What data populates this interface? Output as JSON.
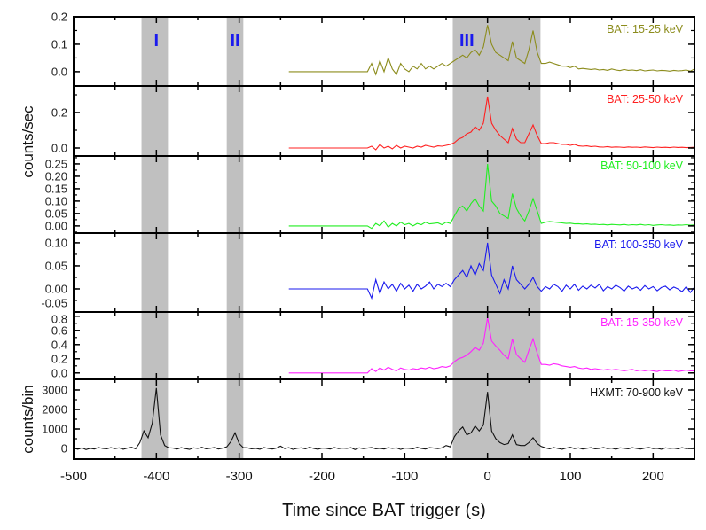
{
  "chart_data": {
    "type": "line",
    "xlabel": "Time since BAT trigger (s)",
    "xlim": [
      -500,
      250
    ],
    "xticks": [
      -500,
      -400,
      -300,
      -200,
      -100,
      0,
      100,
      200
    ],
    "ylabel_top": "counts/sec",
    "ylabel_bottom": "counts/bin",
    "grid": false,
    "shaded_regions": [
      {
        "label": "I",
        "x": [
          -418,
          -386
        ]
      },
      {
        "label": "II",
        "x": [
          -315,
          -295
        ]
      },
      {
        "label": "III",
        "x": [
          -42,
          64
        ]
      }
    ],
    "bat_x": [
      -240,
      -145,
      -140,
      -135,
      -130,
      -125,
      -120,
      -115,
      -110,
      -105,
      -100,
      -95,
      -90,
      -85,
      -80,
      -75,
      -70,
      -65,
      -60,
      -55,
      -50,
      -45,
      -40,
      -35,
      -30,
      -25,
      -20,
      -15,
      -10,
      -5,
      0,
      5,
      10,
      15,
      20,
      25,
      30,
      35,
      40,
      45,
      50,
      55,
      60,
      65,
      70,
      75,
      80,
      85,
      90,
      95,
      100,
      105,
      110,
      115,
      120,
      125,
      130,
      135,
      140,
      145,
      150,
      155,
      160,
      165,
      170,
      175,
      180,
      185,
      190,
      195,
      200,
      205,
      210,
      215,
      220,
      225,
      230,
      235,
      240,
      245,
      250
    ],
    "hxmt_x_range": [
      -500,
      250
    ],
    "panels": [
      {
        "name": "BAT: 15-25 keV",
        "color": "#8c8c1c",
        "ylim": [
          -0.052,
          0.2
        ],
        "yticks": [
          "0.0",
          "0.1",
          "0.2"
        ],
        "ytick_values": [
          0,
          0.1,
          0.2
        ],
        "minor_step": 0.05,
        "values": [
          0,
          0,
          0.03,
          -0.01,
          0.04,
          0.0,
          0.05,
          0.01,
          -0.01,
          0.03,
          0.01,
          0.0,
          0.02,
          0.01,
          0.03,
          0.01,
          0.02,
          0.01,
          0.02,
          0.03,
          0.02,
          0.03,
          0.04,
          0.05,
          0.06,
          0.05,
          0.07,
          0.08,
          0.06,
          0.09,
          0.17,
          0.1,
          0.07,
          0.06,
          0.05,
          0.04,
          0.11,
          0.05,
          0.04,
          0.03,
          0.08,
          0.15,
          0.07,
          0.03,
          0.03,
          0.035,
          0.03,
          0.025,
          0.02,
          0.02,
          0.015,
          0.02,
          0.01,
          0.012,
          0.01,
          0.008,
          0.01,
          0.006,
          0.008,
          0.005,
          0.01,
          0.006,
          0.004,
          0.008,
          0.005,
          0.006,
          0.004,
          0.007,
          0.003,
          0.005,
          0.006,
          0.003,
          0.005,
          0.004,
          0.002,
          0.005,
          0.003,
          0.004,
          0.006,
          0.002,
          0.01
        ]
      },
      {
        "name": "BAT: 25-50 keV",
        "color": "#ff2020",
        "ylim": [
          -0.045,
          0.35
        ],
        "yticks": [
          "0.0",
          "0.2"
        ],
        "ytick_values": [
          0,
          0.2
        ],
        "minor_step": 0.1,
        "values": [
          0,
          0,
          0.01,
          -0.01,
          0.02,
          0.0,
          0.01,
          -0.005,
          0.015,
          0.0,
          0.01,
          0.005,
          0.0,
          0.01,
          0.005,
          0.015,
          0.01,
          0.005,
          0.012,
          0.01,
          0.015,
          0.02,
          0.03,
          0.05,
          0.06,
          0.08,
          0.09,
          0.12,
          0.1,
          0.14,
          0.29,
          0.14,
          0.1,
          0.07,
          0.05,
          0.03,
          0.11,
          0.05,
          0.03,
          0.03,
          0.08,
          0.13,
          0.07,
          0.025,
          0.025,
          0.03,
          0.03,
          0.025,
          0.02,
          0.02,
          0.015,
          0.02,
          0.012,
          0.01,
          0.012,
          0.008,
          0.01,
          0.006,
          0.005,
          0.008,
          0.004,
          0.006,
          0.005,
          0.003,
          0.006,
          0.004,
          0.005,
          0.003,
          0.006,
          0.004,
          0.002,
          0.005,
          0.003,
          0.004,
          0.002,
          0.005,
          0.003,
          0.004,
          0.002,
          0.003,
          0.004
        ]
      },
      {
        "name": "BAT: 50-100 keV",
        "color": "#22ee22",
        "ylim": [
          -0.029,
          0.282
        ],
        "yticks": [
          "0.00",
          "0.05",
          "0.10",
          "0.15",
          "0.20",
          "0.25"
        ],
        "ytick_values": [
          0,
          0.05,
          0.1,
          0.15,
          0.2,
          0.25
        ],
        "minor_step": 0.025,
        "values": [
          0,
          0,
          -0.01,
          0.01,
          0.0,
          0.02,
          -0.005,
          0.01,
          0.0,
          0.015,
          0.005,
          0.01,
          0.0,
          0.01,
          0.005,
          0.015,
          0.008,
          0.01,
          0.012,
          0.005,
          0.015,
          0.01,
          0.04,
          0.07,
          0.08,
          0.06,
          0.09,
          0.11,
          0.08,
          0.06,
          0.25,
          0.1,
          0.08,
          0.05,
          0.04,
          0.03,
          0.13,
          0.07,
          0.04,
          0.02,
          0.06,
          0.11,
          0.06,
          0.01,
          0.015,
          0.018,
          0.016,
          0.014,
          0.012,
          0.01,
          0.011,
          0.008,
          0.009,
          0.007,
          0.008,
          0.006,
          0.007,
          0.005,
          0.006,
          0.004,
          0.006,
          0.005,
          0.004,
          0.006,
          0.003,
          0.005,
          0.004,
          0.006,
          0.003,
          0.005,
          0.002,
          0.004,
          0.005,
          0.003,
          0.004,
          0.002,
          0.004,
          0.003,
          0.005,
          0.003,
          0.004
        ]
      },
      {
        "name": "BAT: 100-350 keV",
        "color": "#1a1aee",
        "ylim": [
          -0.05,
          0.121
        ],
        "yticks": [
          "-0.05",
          "0.00",
          "0.05",
          "0.10"
        ],
        "ytick_values": [
          -0.05,
          0,
          0.05,
          0.1
        ],
        "minor_step": 0.025,
        "values": [
          0,
          0,
          -0.02,
          0.02,
          -0.01,
          0.015,
          0.0,
          0.01,
          -0.005,
          0.012,
          0.0,
          0.008,
          -0.005,
          0.01,
          0.0,
          0.006,
          0.015,
          0.0,
          0.01,
          0.005,
          0.012,
          0.005,
          0.02,
          0.03,
          0.04,
          0.025,
          0.05,
          0.03,
          0.055,
          0.04,
          0.1,
          0.03,
          0.01,
          -0.01,
          0.02,
          0.0,
          0.05,
          0.02,
          0.01,
          0.0,
          0.01,
          0.025,
          0.005,
          -0.005,
          0.005,
          0.0,
          0.01,
          0.005,
          -0.005,
          0.008,
          0.0,
          0.01,
          -0.003,
          0.006,
          0.0,
          0.008,
          0.002,
          0.01,
          -0.004,
          0.005,
          0.0,
          0.008,
          0.003,
          -0.005,
          0.006,
          0.0,
          0.004,
          -0.003,
          0.007,
          0.0,
          0.005,
          -0.004,
          0.003,
          0.006,
          -0.002,
          0.004,
          0.0,
          -0.006,
          0.005,
          -0.008,
          0.004
        ]
      },
      {
        "name": "BAT: 15-350 keV",
        "color": "#ff22ff",
        "ylim": [
          -0.09,
          0.86
        ],
        "yticks": [
          "0.0",
          "0.2",
          "0.4",
          "0.6",
          "0.8"
        ],
        "ytick_values": [
          0,
          0.2,
          0.4,
          0.6,
          0.8
        ],
        "minor_step": 0.1,
        "values": [
          0,
          0,
          0.06,
          0.02,
          0.07,
          0.04,
          0.08,
          0.05,
          0.03,
          0.07,
          0.05,
          0.04,
          0.06,
          0.05,
          0.07,
          0.06,
          0.08,
          0.06,
          0.07,
          0.09,
          0.08,
          0.1,
          0.16,
          0.2,
          0.22,
          0.25,
          0.3,
          0.36,
          0.32,
          0.42,
          0.78,
          0.45,
          0.38,
          0.32,
          0.25,
          0.2,
          0.48,
          0.26,
          0.2,
          0.15,
          0.32,
          0.48,
          0.28,
          0.12,
          0.12,
          0.11,
          0.13,
          0.12,
          0.1,
          0.09,
          0.08,
          0.09,
          0.07,
          0.06,
          0.07,
          0.05,
          0.06,
          0.05,
          0.04,
          0.05,
          0.04,
          0.05,
          0.04,
          0.03,
          0.04,
          0.05,
          0.03,
          0.04,
          0.03,
          0.04,
          0.03,
          0.02,
          0.04,
          0.03,
          0.03,
          0.04,
          0.02,
          0.03,
          0.04,
          0.03,
          0.03
        ]
      },
      {
        "name": "HXMT: 70-900 keV",
        "color": "#111111",
        "ylim": [
          -545,
          3545
        ],
        "yticks": [
          "0",
          "1000",
          "2000",
          "3000"
        ],
        "ytick_values": [
          0,
          1000,
          2000,
          3000
        ],
        "minor_step": 500,
        "values": [
          20,
          -40,
          30,
          -60,
          10,
          -30,
          50,
          0,
          -20,
          40,
          -10,
          30,
          -40,
          20,
          60,
          -20,
          300,
          900,
          550,
          1300,
          3100,
          700,
          150,
          30,
          20,
          -30,
          40,
          -10,
          -50,
          30,
          0,
          60,
          -20,
          10,
          50,
          -30,
          20,
          80,
          350,
          800,
          250,
          40,
          30,
          -20,
          10,
          -40,
          50,
          0,
          -30,
          20,
          120,
          -10,
          40,
          -50,
          10,
          30,
          -20,
          60,
          0,
          -40,
          20,
          10,
          -30,
          50,
          -10,
          20,
          0,
          40,
          -60,
          30,
          -10,
          20,
          50,
          -20,
          10,
          -30,
          40,
          0,
          30,
          -50,
          20,
          10,
          -20,
          60,
          0,
          -30,
          40,
          20,
          -10,
          30,
          150,
          80,
          600,
          900,
          1100,
          700,
          800,
          1150,
          900,
          1200,
          2900,
          900,
          500,
          300,
          200,
          250,
          700,
          200,
          150,
          150,
          300,
          550,
          250,
          100,
          30,
          -20,
          50,
          0,
          -40,
          20,
          60,
          -10,
          30,
          -30,
          10,
          40,
          -20,
          0,
          50,
          -10,
          20,
          -40,
          30,
          10,
          -20,
          40,
          0,
          -30,
          20,
          50,
          -10,
          10,
          -40,
          30,
          0,
          20,
          -20,
          40,
          -10,
          10,
          30
        ]
      }
    ]
  }
}
